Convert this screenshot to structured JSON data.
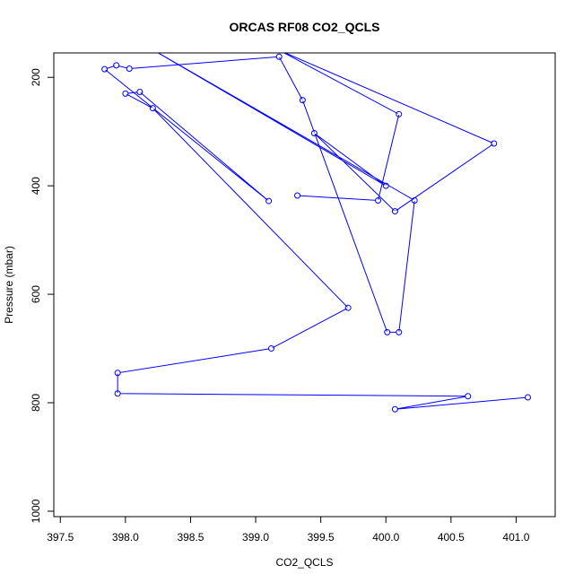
{
  "chart_data": {
    "type": "line",
    "title": "ORCAS RF08 CO2_QCLS",
    "xlabel": "CO2_QCLS",
    "ylabel": "Pressure (mbar)",
    "xlim": [
      397.45,
      401.3
    ],
    "ylim": [
      1010,
      155
    ],
    "y_reversed": true,
    "xticks": [
      397.5,
      398.0,
      398.5,
      399.0,
      399.5,
      400.0,
      400.5,
      401.0
    ],
    "xtick_labels": [
      "397.5",
      "398.0",
      "398.5",
      "399.0",
      "399.5",
      "400.0",
      "400.5",
      "401.0"
    ],
    "yticks": [
      200,
      400,
      600,
      800,
      1000
    ],
    "ytick_labels": [
      "200",
      "400",
      "600",
      "800",
      "1000"
    ],
    "grid": false,
    "legend": "none",
    "colors": {
      "series": "#0000ff",
      "axis": "#000000"
    },
    "marker": "open-circle",
    "series": [
      {
        "x": [
          401.09,
          400.07,
          400.63,
          397.94,
          397.94,
          399.12,
          399.71,
          398.21,
          398.0,
          398.11,
          399.1,
          397.84,
          397.93,
          398.03,
          399.18,
          399.36,
          400.01,
          400.1,
          400.22,
          398.18,
          400.0,
          399.45,
          400.07,
          400.83,
          399.18,
          400.1,
          399.94,
          399.32
        ],
        "y": [
          790,
          812,
          788,
          783,
          745,
          700,
          625,
          257,
          230,
          227,
          428,
          185,
          178,
          184,
          162,
          242,
          670,
          670,
          427,
          145,
          400,
          303,
          447,
          322,
          150,
          268,
          427,
          418
        ]
      }
    ]
  }
}
